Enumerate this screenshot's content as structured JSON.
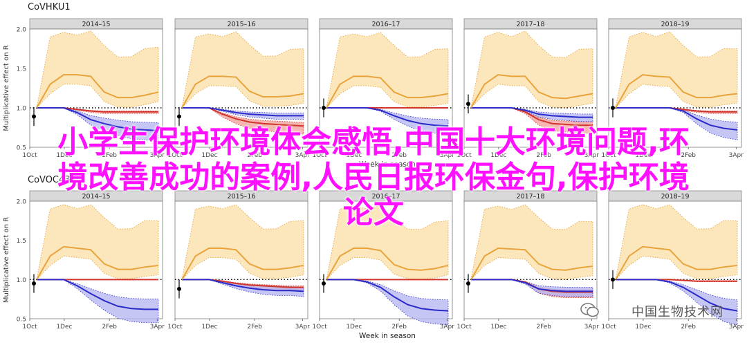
{
  "overlay_title": [
    "小学生保护环境体会感悟,中国十大环境问题,环",
    "境改善成功的案例,人民日报环保金句,保护环境",
    "论文"
  ],
  "watermark": "中国生物技术网",
  "colors": {
    "overlay": "#ff10ff",
    "gold": "#e8a33a",
    "gold_fill": "#fbe3b1",
    "red": "#d1342a",
    "red_fill": "#f3a39e",
    "blue": "#2a2ac8",
    "blue_fill": "#b8b8f2",
    "strip": "#d9d9d9",
    "panel_bg": "#ffffff"
  },
  "chart_data": [
    {
      "type": "line",
      "title": "CoVHKU1",
      "subtitle": "",
      "ylabel": "Multiplicative effect on R",
      "xlabel": "Week in season",
      "x_ticks": [
        "1Oct",
        "1Dec",
        "2Feb",
        "3Apr"
      ],
      "y_ticks": [
        "0.5",
        "1.0",
        "1.5",
        "2.0"
      ],
      "ylim": [
        0.5,
        2.0
      ],
      "facets": [
        {
          "label": "2014–15",
          "gold": [
            1.0,
            1.3,
            1.42,
            1.42,
            1.4,
            1.2,
            1.13,
            1.13,
            1.16,
            1.2
          ],
          "blue": [
            1.0,
            1.0,
            1.0,
            0.94,
            0.85,
            0.8,
            0.76,
            0.73,
            0.72,
            0.71
          ],
          "red": [
            1.0,
            1.0,
            1.0,
            0.98,
            0.96,
            0.95,
            0.95,
            0.95,
            0.95,
            0.95
          ],
          "start": 0.89
        },
        {
          "label": "2015–16",
          "gold": [
            1.0,
            1.3,
            1.4,
            1.4,
            1.39,
            1.21,
            1.14,
            1.14,
            1.15,
            1.18
          ],
          "blue": [
            1.0,
            1.0,
            1.0,
            0.97,
            0.94,
            0.92,
            0.91,
            0.9,
            0.9,
            0.9
          ],
          "red": [
            1.0,
            1.0,
            1.0,
            0.92,
            0.86,
            0.82,
            0.8,
            0.79,
            0.78,
            0.77
          ],
          "start": 0.89
        },
        {
          "label": "2016–17",
          "gold": [
            1.0,
            1.3,
            1.4,
            1.4,
            1.38,
            1.2,
            1.13,
            1.13,
            1.15,
            1.18
          ],
          "blue": [
            1.0,
            1.0,
            1.0,
            1.0,
            0.97,
            0.9,
            0.84,
            0.8,
            0.78,
            0.77
          ],
          "red": [
            1.0,
            1.0,
            1.0,
            1.0,
            1.0,
            1.0,
            1.0,
            1.0,
            1.0,
            1.0
          ],
          "start": 1.0
        },
        {
          "label": "2017–18",
          "gold": [
            1.0,
            1.3,
            1.42,
            1.4,
            1.4,
            1.2,
            1.13,
            1.12,
            1.15,
            1.18
          ],
          "blue": [
            1.0,
            1.0,
            1.0,
            1.0,
            0.97,
            0.92,
            0.9,
            0.89,
            0.88,
            0.88
          ],
          "red": [
            1.0,
            1.0,
            1.0,
            1.0,
            0.95,
            0.85,
            0.8,
            0.79,
            0.78,
            0.78
          ],
          "start": 1.05
        },
        {
          "label": "2018–19",
          "gold": [
            1.0,
            1.3,
            1.42,
            1.4,
            1.39,
            1.2,
            1.13,
            1.13,
            1.16,
            1.18
          ],
          "blue": [
            1.0,
            1.0,
            1.0,
            1.0,
            1.0,
            0.96,
            0.86,
            0.78,
            0.74,
            0.72
          ],
          "red": [
            1.0,
            1.0,
            1.0,
            1.0,
            1.0,
            0.98,
            0.96,
            0.95,
            0.95,
            0.95
          ],
          "start": 1.0
        }
      ]
    },
    {
      "type": "line",
      "title": "CoVOC43",
      "ylabel": "Multiplicative effect on R",
      "xlabel": "Week in season",
      "x_ticks": [
        "1Oct",
        "1Dec",
        "2Feb",
        "3Apr"
      ],
      "y_ticks": [
        "0.5",
        "1.0",
        "1.5",
        "2.0"
      ],
      "ylim": [
        0.5,
        2.0
      ],
      "facets": [
        {
          "label": "2014–15",
          "gold": [
            1.0,
            1.3,
            1.42,
            1.4,
            1.38,
            1.2,
            1.13,
            1.13,
            1.16,
            1.18
          ],
          "blue": [
            1.0,
            1.0,
            1.0,
            0.92,
            0.82,
            0.73,
            0.66,
            0.63,
            0.62,
            0.62
          ],
          "red": [
            1.0,
            1.0,
            1.0,
            1.0,
            1.0,
            1.0,
            1.0,
            1.0,
            1.0,
            1.0
          ],
          "start": 0.95
        },
        {
          "label": "2015–16",
          "gold": [
            1.0,
            1.3,
            1.4,
            1.4,
            1.38,
            1.2,
            1.13,
            1.13,
            1.15,
            1.18
          ],
          "blue": [
            1.0,
            1.0,
            1.0,
            0.96,
            0.92,
            0.89,
            0.87,
            0.86,
            0.86,
            0.85
          ],
          "red": [
            1.0,
            1.0,
            1.0,
            0.98,
            0.95,
            0.93,
            0.92,
            0.91,
            0.9,
            0.9
          ],
          "start": 0.88
        },
        {
          "label": "2016–17",
          "gold": [
            1.0,
            1.3,
            1.4,
            1.4,
            1.37,
            1.19,
            1.13,
            1.12,
            1.14,
            1.18
          ],
          "blue": [
            1.0,
            1.0,
            1.0,
            0.97,
            0.9,
            0.78,
            0.68,
            0.63,
            0.61,
            0.6
          ],
          "red": [
            1.0,
            1.0,
            1.0,
            1.0,
            1.0,
            1.0,
            1.0,
            1.0,
            1.0,
            1.0
          ],
          "start": 0.95
        },
        {
          "label": "2017–18",
          "gold": [
            1.0,
            1.3,
            1.4,
            1.39,
            1.38,
            1.2,
            1.13,
            1.12,
            1.15,
            1.17
          ],
          "blue": [
            1.0,
            1.0,
            1.0,
            1.0,
            0.96,
            0.88,
            0.86,
            0.85,
            0.85,
            0.85
          ],
          "red": [
            1.0,
            1.0,
            1.0,
            1.0,
            0.97,
            0.88,
            0.85,
            0.84,
            0.84,
            0.84
          ],
          "start": 0.95
        },
        {
          "label": "2018–19",
          "gold": [
            1.0,
            1.3,
            1.42,
            1.4,
            1.38,
            1.2,
            1.13,
            1.13,
            1.16,
            1.18
          ],
          "blue": [
            1.0,
            1.0,
            1.0,
            1.0,
            0.97,
            0.9,
            0.8,
            0.7,
            0.63,
            0.6
          ],
          "red": [
            1.0,
            1.0,
            1.0,
            1.0,
            1.0,
            0.99,
            0.98,
            0.98,
            0.98,
            0.98
          ],
          "start": 1.0
        }
      ]
    }
  ]
}
